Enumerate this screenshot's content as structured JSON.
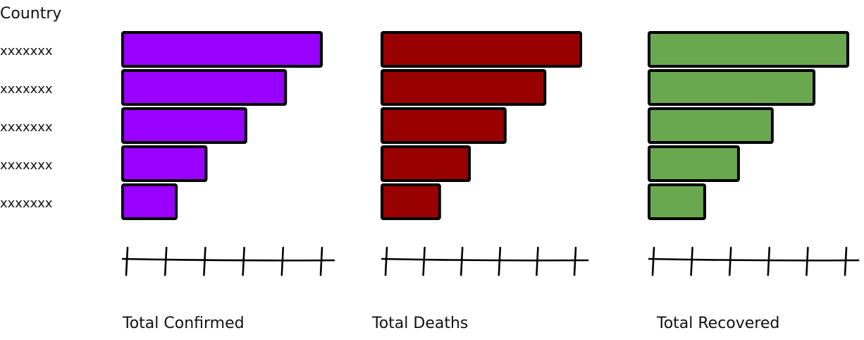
{
  "chart_data": {
    "type": "bar",
    "orientation": "horizontal",
    "category_header": "Country",
    "categories": [
      "xxxxxxx",
      "xxxxxxx",
      "xxxxxxx",
      "xxxxxxx",
      "xxxxxxx"
    ],
    "panels": [
      {
        "title": "Total Confirmed",
        "color": "#9900ff",
        "values": [
          100,
          82,
          62,
          42,
          27
        ]
      },
      {
        "title": "Total Deaths",
        "color": "#990000",
        "values": [
          100,
          82,
          62,
          44,
          29
        ]
      },
      {
        "title": "Total Recovered",
        "color": "#6aa84f",
        "values": [
          100,
          83,
          62,
          45,
          28
        ]
      }
    ],
    "xlim": [
      0,
      100
    ],
    "grid": false,
    "legend": "none"
  }
}
